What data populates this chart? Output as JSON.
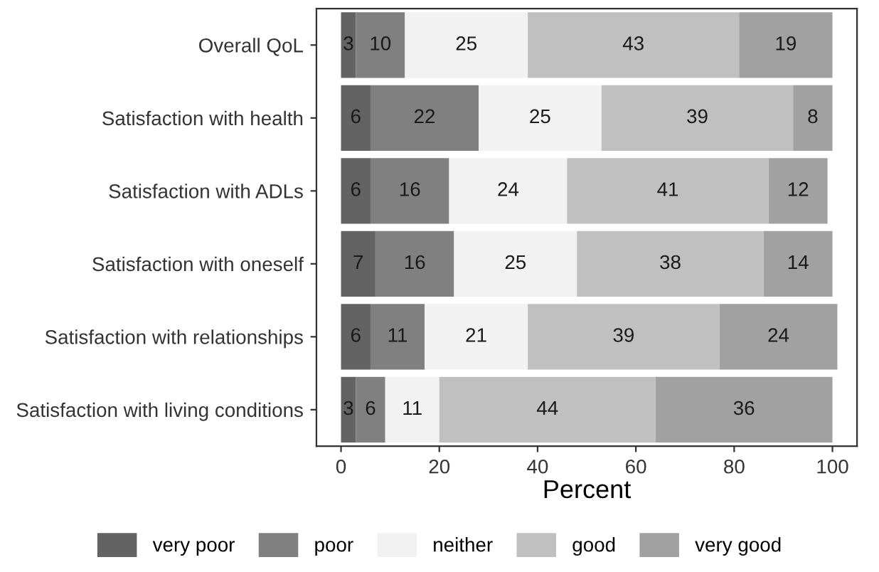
{
  "chart_data": {
    "type": "bar",
    "orientation": "horizontal",
    "stacked": true,
    "xlabel": "Percent",
    "categories": [
      "Overall QoL",
      "Satisfaction with health",
      "Satisfaction with ADLs",
      "Satisfaction with oneself",
      "Satisfaction with relationships",
      "Satisfaction with living conditions"
    ],
    "series": [
      {
        "name": "very poor",
        "color": "#636363",
        "values": [
          3,
          6,
          6,
          7,
          6,
          3
        ]
      },
      {
        "name": "poor",
        "color": "#808080",
        "values": [
          10,
          22,
          16,
          16,
          11,
          6
        ]
      },
      {
        "name": "neither",
        "color": "#f2f2f2",
        "values": [
          25,
          25,
          24,
          25,
          21,
          11
        ]
      },
      {
        "name": "good",
        "color": "#c0c0c0",
        "values": [
          43,
          39,
          41,
          38,
          39,
          44
        ]
      },
      {
        "name": "very good",
        "color": "#a1a1a1",
        "values": [
          19,
          8,
          12,
          14,
          24,
          36
        ]
      }
    ],
    "xlim": [
      -5,
      105
    ],
    "xticks": [
      0,
      20,
      40,
      60,
      80,
      100
    ],
    "data_labels": true,
    "grid": false,
    "legend": "bottom"
  }
}
